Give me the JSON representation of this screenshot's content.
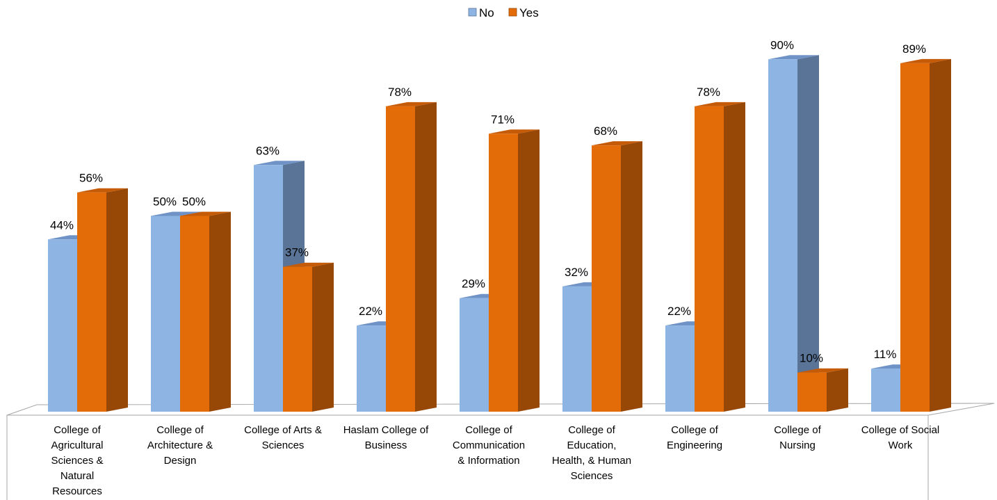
{
  "chart_data": {
    "type": "bar",
    "title": "",
    "xlabel": "",
    "ylabel": "",
    "ylim": [
      0,
      100
    ],
    "grid": false,
    "legend_position": "top-center",
    "categories": [
      "College of Agricultural Sciences & Natural Resources",
      "College of Architecture & Design",
      "College of Arts & Sciences",
      "Haslam College of Business",
      "College of Communication & Information",
      "College of Education, Health, & Human Sciences",
      "College of Engineering",
      "College of Nursing",
      "College of Social Work"
    ],
    "category_lines": [
      [
        "College of",
        "Agricultural",
        "Sciences &",
        "Natural",
        "Resources"
      ],
      [
        "College of",
        "Architecture &",
        "Design"
      ],
      [
        "College of Arts &",
        "Sciences"
      ],
      [
        "Haslam College of",
        "Business"
      ],
      [
        "College of",
        "Communication",
        "& Information"
      ],
      [
        "College of",
        "Education,",
        "Health, & Human",
        "Sciences"
      ],
      [
        "College of",
        "Engineering"
      ],
      [
        "College of",
        "Nursing"
      ],
      [
        "College of Social",
        "Work"
      ]
    ],
    "series": [
      {
        "name": "No",
        "values": [
          44,
          50,
          63,
          22,
          29,
          32,
          22,
          90,
          11
        ],
        "labels": [
          "44%",
          "50%",
          "63%",
          "22%",
          "29%",
          "32%",
          "22%",
          "90%",
          "11%"
        ],
        "color_front": "#8DB4E3",
        "color_side": "#5A7497",
        "color_top": "#6F93C6"
      },
      {
        "name": "Yes",
        "values": [
          56,
          50,
          37,
          78,
          71,
          68,
          78,
          10,
          89
        ],
        "labels": [
          "56%",
          "50%",
          "37%",
          "78%",
          "71%",
          "68%",
          "78%",
          "10%",
          "89%"
        ],
        "color_front": "#E36C09",
        "color_side": "#974806",
        "color_top": "#C55A07"
      }
    ]
  }
}
